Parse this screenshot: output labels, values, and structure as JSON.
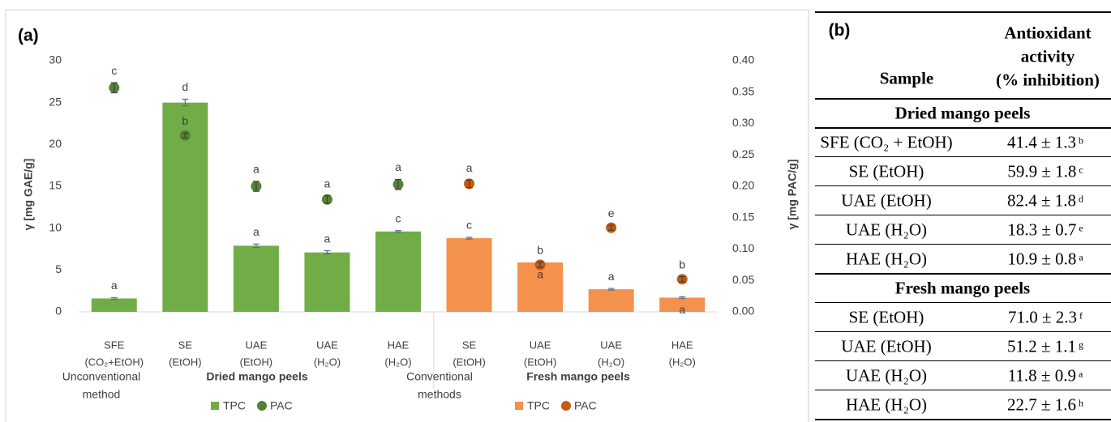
{
  "chart_data": {
    "type": "bar",
    "title": "(a)",
    "y_label": "γ [mg GAE/g]",
    "y2_label": "γ [mg PAC/g]",
    "categories": [
      [
        "SFE",
        "(CO₂+EtOH)"
      ],
      [
        "SE",
        "(EtOH)"
      ],
      [
        "UAE",
        "(EtOH)"
      ],
      [
        "UAE",
        "(H₂O)"
      ],
      [
        "HAE",
        "(H₂O)"
      ],
      [
        "SE",
        "(EtOH)"
      ],
      [
        "UAE",
        "(EtOH)"
      ],
      [
        "UAE",
        "(H₂O)"
      ],
      [
        "HAE",
        "(H₂O)"
      ]
    ],
    "groups": [
      {
        "method": [
          "Unconventional",
          "method"
        ],
        "name": "Dried mango peels",
        "legend": [
          0,
          1
        ]
      },
      {
        "method": [
          "Conventional",
          "methods"
        ],
        "name": "Fresh mango peels",
        "legend": [
          2,
          3
        ]
      }
    ],
    "series": [
      {
        "name": "TPC",
        "kind": "bar",
        "color": "#70ad47",
        "values": [
          1.6,
          25.0,
          7.9,
          7.1,
          9.6,
          null,
          null,
          null,
          null
        ],
        "errors": [
          0.1,
          0.4,
          0.2,
          0.2,
          0.1,
          null,
          null,
          null,
          null
        ],
        "letters": [
          "a",
          "d",
          "a",
          "a",
          "c",
          null,
          null,
          null,
          null
        ]
      },
      {
        "name": "PAC",
        "kind": "dot",
        "axis": "y2",
        "color": "#548235",
        "values": [
          0.357,
          0.281,
          0.2,
          0.179,
          0.203,
          null,
          null,
          null,
          null
        ],
        "errors": [
          0.008,
          0.004,
          0.008,
          0.006,
          0.008,
          null,
          null,
          null,
          null
        ],
        "letters": [
          "c",
          "b",
          "a",
          "a",
          "a",
          null,
          null,
          null,
          null
        ]
      },
      {
        "name": "TPC",
        "kind": "bar",
        "color": "#f4914d",
        "values": [
          null,
          null,
          null,
          null,
          null,
          8.8,
          5.9,
          2.7,
          1.7
        ],
        "errors": [
          null,
          null,
          null,
          null,
          null,
          0.1,
          0.1,
          0.1,
          0.1
        ],
        "letters": [
          null,
          null,
          null,
          null,
          null,
          "c",
          "a",
          "a",
          "a"
        ]
      },
      {
        "name": "PAC",
        "kind": "dot",
        "axis": "y2",
        "color": "#c55a11",
        "values": [
          null,
          null,
          null,
          null,
          null,
          0.204,
          0.075,
          0.134,
          0.052
        ],
        "errors": [
          null,
          null,
          null,
          null,
          null,
          0.006,
          0.004,
          0.004,
          0.004
        ],
        "letters": [
          null,
          null,
          null,
          null,
          null,
          "a",
          "b",
          "e",
          "b"
        ]
      }
    ],
    "ylim": [
      0,
      30
    ],
    "yticks": [
      0,
      5,
      10,
      15,
      20,
      25,
      30
    ],
    "y2lim": [
      0,
      0.4
    ],
    "y2ticks": [
      {
        "value": 0,
        "label": "0.00"
      },
      {
        "value": 0.05,
        "label": "0.05"
      },
      {
        "value": 0.1,
        "label": "0.10"
      },
      {
        "value": 0.15,
        "label": "0.15"
      },
      {
        "value": 0.2,
        "label": "0.20"
      },
      {
        "value": 0.25,
        "label": "0.25"
      },
      {
        "value": 0.3,
        "label": "0.30"
      },
      {
        "value": 0.35,
        "label": "0.35"
      },
      {
        "value": 0.4,
        "label": "0.40"
      }
    ],
    "grid": false
  },
  "table": {
    "label": "(b)",
    "sample_header": "Sample",
    "value_header": [
      "Antioxidant",
      "activity",
      "(% inhibition)"
    ],
    "sections": [
      {
        "title": "Dried mango peels",
        "rows": [
          {
            "sample": "SFE (CO₂ + EtOH)",
            "value": "41.4 ± 1.3",
            "letter": "b"
          },
          {
            "sample": "SE (EtOH)",
            "value": "59.9 ± 1.8",
            "letter": "c"
          },
          {
            "sample": "UAE (EtOH)",
            "value": "82.4 ± 1.8",
            "letter": "d"
          },
          {
            "sample": "UAE (H₂O)",
            "value": "18.3 ± 0.7",
            "letter": "e"
          },
          {
            "sample": "HAE (H₂O)",
            "value": "10.9 ± 0.8",
            "letter": "a"
          }
        ]
      },
      {
        "title": "Fresh mango peels",
        "rows": [
          {
            "sample": "SE (EtOH)",
            "value": "71.0 ± 2.3",
            "letter": "f"
          },
          {
            "sample": "UAE (EtOH)",
            "value": "51.2 ± 1.1",
            "letter": "g"
          },
          {
            "sample": "UAE (H₂O)",
            "value": "11.8 ± 0.9",
            "letter": "a"
          },
          {
            "sample": "HAE (H₂O)",
            "value": "22.7 ± 1.6",
            "letter": "h"
          }
        ]
      }
    ]
  }
}
